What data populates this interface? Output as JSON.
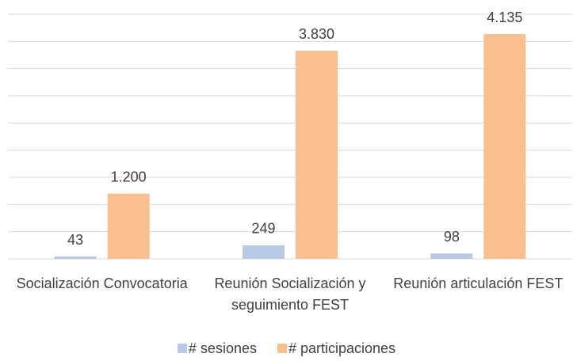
{
  "chart_data": {
    "type": "bar",
    "categories": [
      "Socialización Convocatoria",
      "Reunión Socialización y seguimiento FEST",
      "Reunión articulación FEST"
    ],
    "series": [
      {
        "name": "# sesiones",
        "color": "#b7c9e5",
        "values": [
          43,
          249,
          98
        ]
      },
      {
        "name": "# participaciones",
        "color": "#f9bf8f",
        "values": [
          1200,
          3830,
          4135
        ],
        "value_labels": [
          "1.200",
          "3.830",
          "4.135"
        ]
      }
    ],
    "ylim": [
      0,
      4500
    ],
    "yticks": [
      0,
      500,
      1000,
      1500,
      2000,
      2500,
      3000,
      3500,
      4000,
      4500
    ],
    "grid": true,
    "legend": "bottom"
  }
}
